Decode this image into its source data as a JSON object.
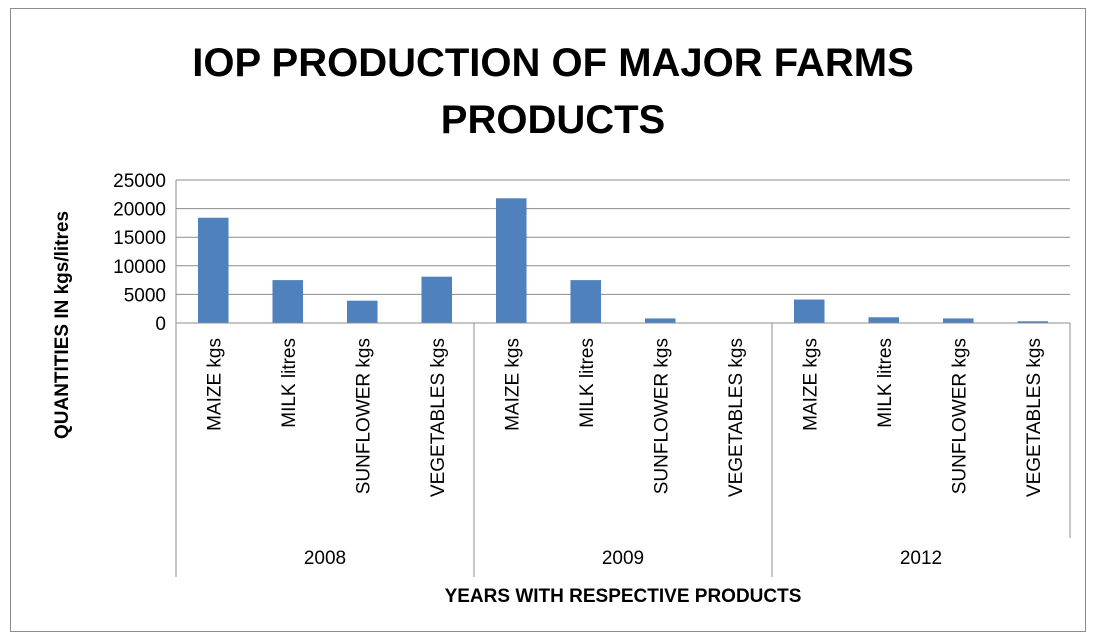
{
  "chart_data": {
    "type": "bar",
    "title_lines": [
      "IOP PRODUCTION OF MAJOR FARMS",
      "PRODUCTS"
    ],
    "xlabel": "YEARS WITH RESPECTIVE PRODUCTS",
    "ylabel": "QUANTITIES IN kgs/litres",
    "ylim": [
      0,
      25000
    ],
    "yticks": [
      "0",
      "5000",
      "10000",
      "15000",
      "20000",
      "25000"
    ],
    "grid": true,
    "legend": "none",
    "bar_color": "#4f81bd",
    "groups": [
      {
        "label": "2008",
        "categories": [
          "MAIZE kgs",
          "MILK  litres",
          "SUNFLOWER kgs",
          "VEGETABLES kgs"
        ],
        "values": [
          18400,
          7500,
          3900,
          8100
        ]
      },
      {
        "label": "2009",
        "categories": [
          "MAIZE kgs",
          "MILK  litres",
          "SUNFLOWER kgs",
          "VEGETABLES kgs"
        ],
        "values": [
          21800,
          7500,
          800,
          0
        ]
      },
      {
        "label": "2012",
        "categories": [
          "MAIZE kgs",
          "MILK litres",
          "SUNFLOWER kgs",
          "VEGETABLES kgs"
        ],
        "values": [
          4100,
          1000,
          800,
          300
        ]
      }
    ]
  }
}
